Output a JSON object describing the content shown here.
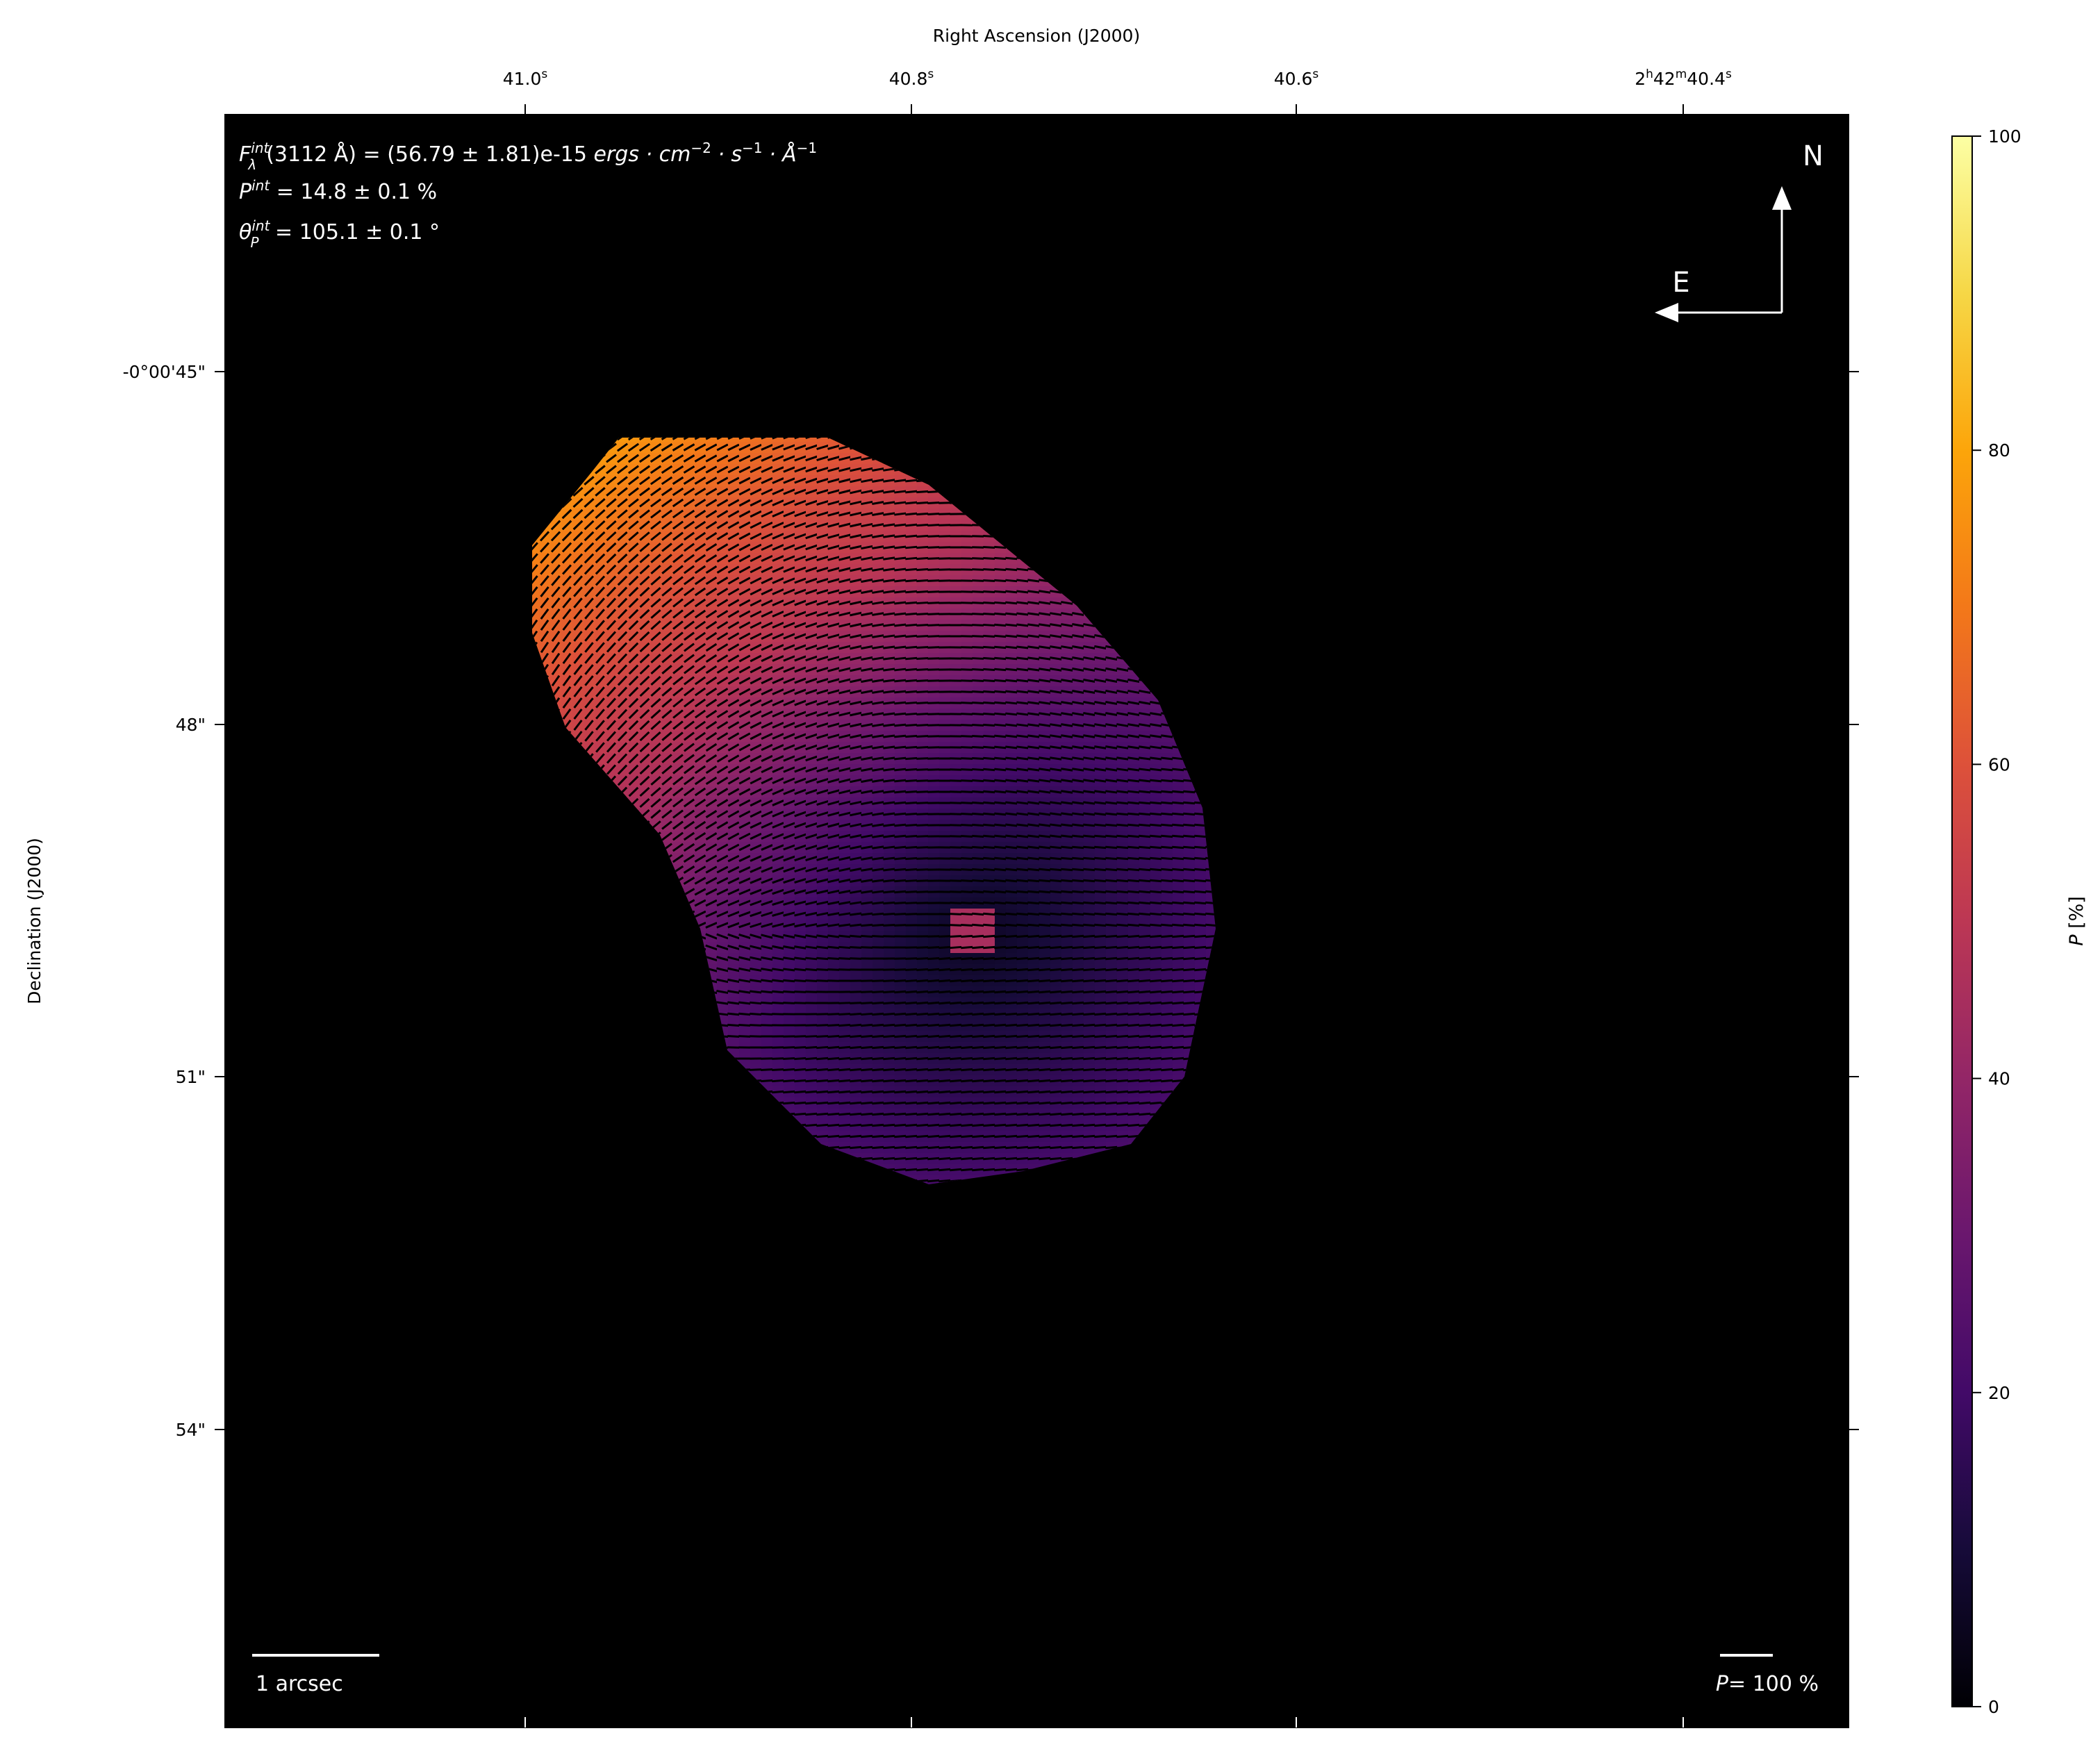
{
  "chart_data": {
    "type": "heatmap",
    "subtype": "polarization map with vectors",
    "xlabel": "Right Ascension (J2000)",
    "ylabel": "Declination (J2000)",
    "x_ticks": [
      {
        "main": "41.0",
        "sup": "s"
      },
      {
        "main": "40.8",
        "sup": "s"
      },
      {
        "main": "40.6",
        "sup": "s"
      },
      {
        "pre": "2",
        "sup1": "h",
        "mid": "42",
        "sup2": "m",
        "main": "40.4",
        "sup": "s"
      }
    ],
    "y_ticks": [
      "-0°00'45\"",
      "48\"",
      "51\"",
      "54\""
    ],
    "annotations": {
      "flux": {
        "sym": "F",
        "sup": "int",
        "sub": "λ",
        "text": "(3112 Å) = (56.79 ± 1.81)e-15 ",
        "units": "ergs · cm",
        "u1": "−2",
        "s": " · s",
        "u2": "−1",
        "a": " · Å",
        "u3": "−1"
      },
      "pol": {
        "sym": "P",
        "sup": "int",
        "text": " = 14.8 ± 0.1 %"
      },
      "angle": {
        "sym": "θ",
        "sup": "int",
        "sub": "P",
        "text": " = 105.1 ± 0.1 °"
      }
    },
    "compass": {
      "north": "N",
      "east": "E"
    },
    "scale_bar": {
      "label": "1 arcsec"
    },
    "vector_scale": {
      "sym": "P",
      "label": "= 100 %"
    },
    "colorbar": {
      "label_sym": "P",
      "label_unit": " [%]",
      "range": [
        0,
        100
      ],
      "ticks": [
        "0",
        "20",
        "40",
        "60",
        "80",
        "100"
      ],
      "colormap": "inferno"
    },
    "background": "#000000"
  }
}
